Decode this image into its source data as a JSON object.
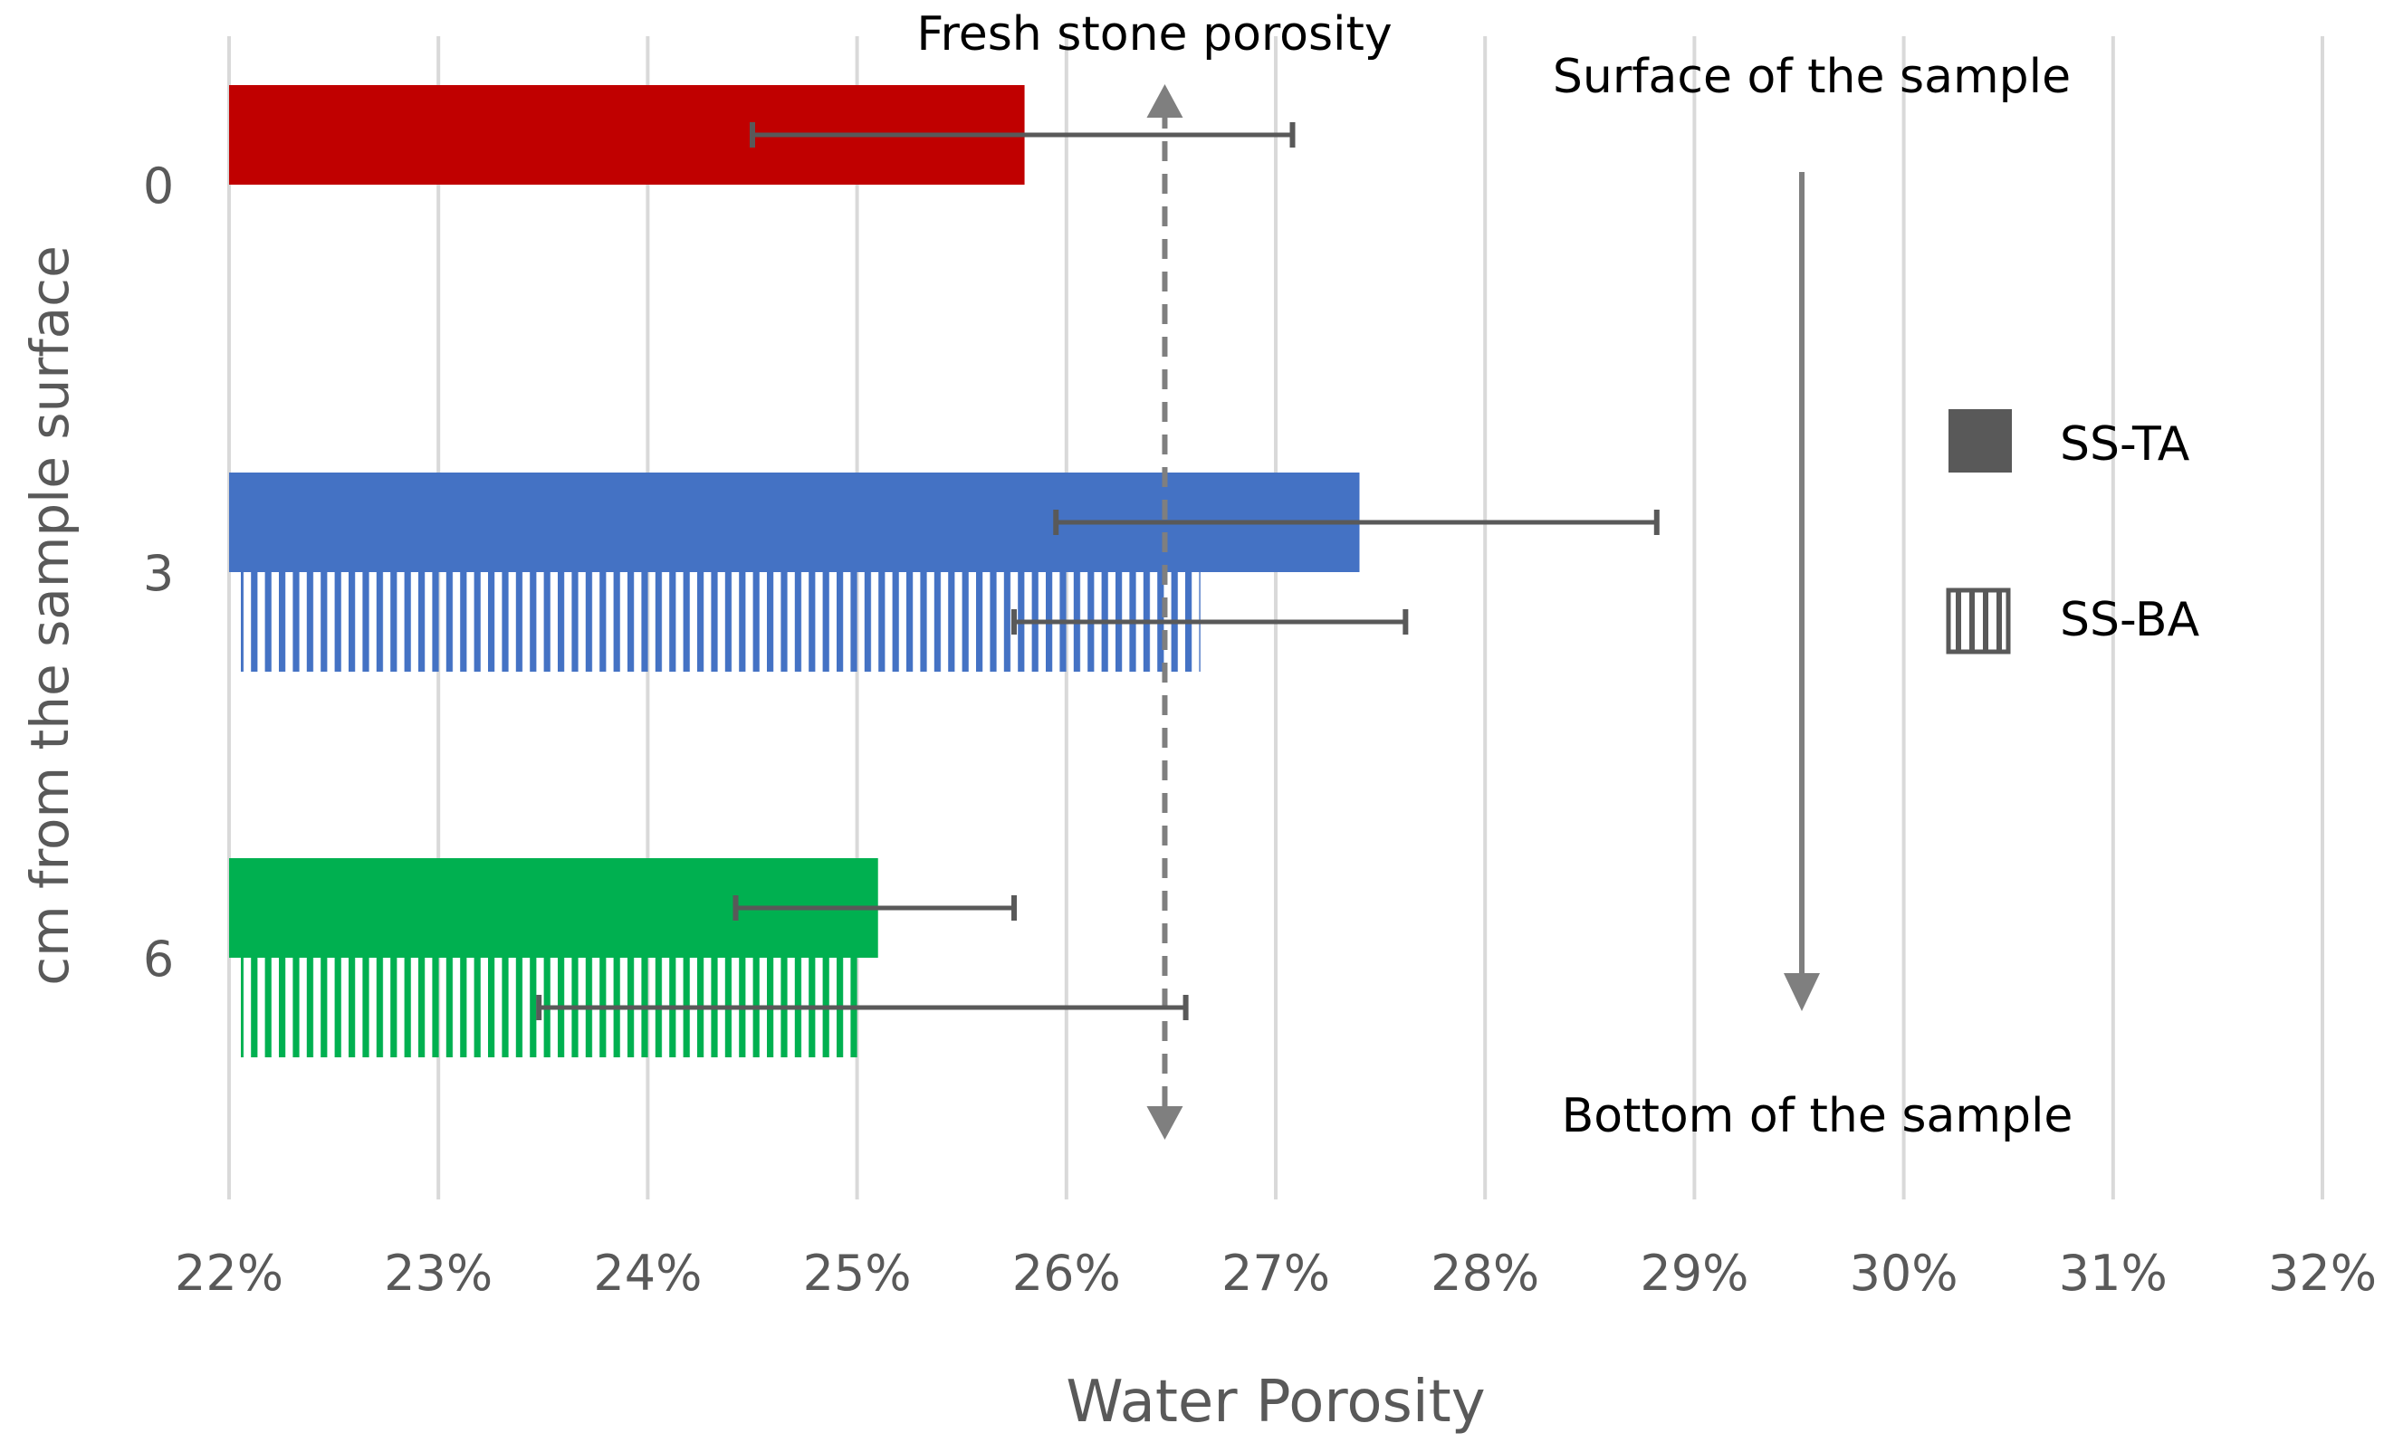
{
  "chart_data": {
    "type": "bar",
    "orientation": "horizontal",
    "xlabel": "Water Porosity",
    "ylabel": "cm from the sample surface",
    "xlim": [
      0.22,
      0.32
    ],
    "xticks": [
      0.22,
      0.23,
      0.24,
      0.25,
      0.26,
      0.27,
      0.28,
      0.29,
      0.3,
      0.31,
      0.32
    ],
    "xtick_labels": [
      "22%",
      "23%",
      "24%",
      "25%",
      "26%",
      "27%",
      "28%",
      "29%",
      "30%",
      "31%",
      "32%"
    ],
    "categories": [
      "0",
      "3",
      "6"
    ],
    "category_colors": [
      "#c00000",
      "#4472c4",
      "#00b050"
    ],
    "series": [
      {
        "name": "SS-TA",
        "pattern": "solid",
        "values": [
          0.258,
          0.274,
          0.251
        ],
        "error_low": [
          0.245,
          0.2595,
          0.2442
        ],
        "error_high": [
          0.2708,
          0.2882,
          0.2575
        ]
      },
      {
        "name": "SS-BA",
        "pattern": "vertical-stripes",
        "values": [
          null,
          0.2664,
          0.2502
        ],
        "error_low": [
          null,
          0.2575,
          0.2348
        ],
        "error_high": [
          null,
          0.2762,
          0.2657
        ]
      }
    ],
    "reference_line": {
      "label": "Fresh stone porosity",
      "value": 0.2647
    },
    "annotations": {
      "top": "Surface of the sample",
      "bottom": "Bottom of the sample"
    },
    "legend_position": "right",
    "grid": "vertical",
    "colors": {
      "grid": "#d9d9d9",
      "error_bar": "#595959",
      "axis_text": "#595959",
      "annotation_text": "#000000",
      "guide": "#7f7f7f"
    }
  }
}
